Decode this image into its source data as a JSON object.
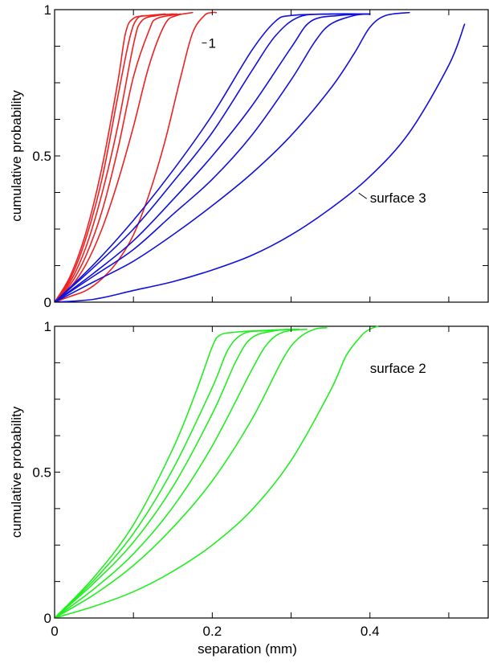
{
  "chart_data": [
    {
      "type": "line",
      "panel": "top",
      "ylabel": "cumulative probability",
      "xlabel": "",
      "xlim": [
        0,
        0.55
      ],
      "ylim": [
        0,
        1
      ],
      "x_ticks": [
        0,
        0.2,
        0.4
      ],
      "y_ticks": [
        {
          "value": 0,
          "label": "0"
        },
        {
          "value": 0.5,
          "label": "0.5"
        },
        {
          "value": 1,
          "label": "1"
        }
      ],
      "show_x_tick_labels": false,
      "annotations": [
        {
          "text": "1",
          "x": 0.195,
          "y": 0.87
        },
        {
          "text": "surface 3",
          "x": 0.4,
          "y": 0.34
        }
      ],
      "series_groups": [
        {
          "color": "#ee2222",
          "curves": [
            {
              "x": [
                0,
                0.02,
                0.04,
                0.06,
                0.08,
                0.09,
                0.1,
                0.12,
                0.14
              ],
              "y": [
                0,
                0.09,
                0.24,
                0.46,
                0.75,
                0.92,
                0.97,
                0.98,
                0.985
              ]
            },
            {
              "x": [
                0,
                0.02,
                0.04,
                0.06,
                0.08,
                0.095,
                0.105,
                0.12,
                0.15
              ],
              "y": [
                0,
                0.08,
                0.22,
                0.42,
                0.7,
                0.9,
                0.97,
                0.98,
                0.985
              ]
            },
            {
              "x": [
                0,
                0.02,
                0.04,
                0.06,
                0.08,
                0.1,
                0.11,
                0.13,
                0.155
              ],
              "y": [
                0,
                0.07,
                0.19,
                0.37,
                0.6,
                0.88,
                0.96,
                0.98,
                0.985
              ]
            },
            {
              "x": [
                0,
                0.02,
                0.04,
                0.06,
                0.08,
                0.1,
                0.12,
                0.13,
                0.16
              ],
              "y": [
                0,
                0.06,
                0.16,
                0.31,
                0.52,
                0.77,
                0.93,
                0.97,
                0.985
              ]
            },
            {
              "x": [
                0,
                0.02,
                0.04,
                0.06,
                0.08,
                0.1,
                0.12,
                0.14,
                0.155,
                0.175
              ],
              "y": [
                0,
                0.05,
                0.13,
                0.25,
                0.41,
                0.6,
                0.81,
                0.95,
                0.98,
                0.99
              ]
            },
            {
              "x": [
                0,
                0.02,
                0.04,
                0.06,
                0.08,
                0.1,
                0.12,
                0.14,
                0.16,
                0.175,
                0.19,
                0.2,
                0.205
              ],
              "y": [
                0,
                0.02,
                0.04,
                0.08,
                0.14,
                0.23,
                0.37,
                0.55,
                0.77,
                0.92,
                0.98,
                0.99,
                0.99
              ]
            }
          ]
        },
        {
          "color": "#1111dd",
          "curves": [
            {
              "x": [
                0,
                0.05,
                0.1,
                0.15,
                0.2,
                0.25,
                0.28,
                0.3,
                0.35,
                0.4
              ],
              "y": [
                0,
                0.13,
                0.28,
                0.45,
                0.64,
                0.86,
                0.96,
                0.98,
                0.985,
                0.985
              ]
            },
            {
              "x": [
                0,
                0.05,
                0.1,
                0.15,
                0.2,
                0.25,
                0.28,
                0.31,
                0.35,
                0.4
              ],
              "y": [
                0,
                0.12,
                0.25,
                0.41,
                0.58,
                0.79,
                0.91,
                0.975,
                0.985,
                0.985
              ]
            },
            {
              "x": [
                0,
                0.05,
                0.1,
                0.15,
                0.2,
                0.25,
                0.3,
                0.325,
                0.36,
                0.4
              ],
              "y": [
                0,
                0.1,
                0.21,
                0.35,
                0.5,
                0.67,
                0.87,
                0.96,
                0.98,
                0.985
              ]
            },
            {
              "x": [
                0,
                0.05,
                0.1,
                0.15,
                0.2,
                0.25,
                0.3,
                0.33,
                0.35,
                0.38,
                0.4
              ],
              "y": [
                0,
                0.09,
                0.18,
                0.3,
                0.42,
                0.57,
                0.76,
                0.89,
                0.95,
                0.98,
                0.985
              ]
            },
            {
              "x": [
                0,
                0.05,
                0.1,
                0.15,
                0.2,
                0.25,
                0.3,
                0.35,
                0.38,
                0.4,
                0.42,
                0.45
              ],
              "y": [
                0,
                0.07,
                0.14,
                0.23,
                0.33,
                0.44,
                0.57,
                0.73,
                0.85,
                0.94,
                0.98,
                0.99
              ]
            },
            {
              "x": [
                0,
                0.05,
                0.1,
                0.15,
                0.2,
                0.25,
                0.3,
                0.35,
                0.4,
                0.45,
                0.5,
                0.52
              ],
              "y": [
                0,
                0.01,
                0.04,
                0.07,
                0.11,
                0.16,
                0.23,
                0.32,
                0.43,
                0.58,
                0.81,
                0.95
              ]
            }
          ]
        }
      ]
    },
    {
      "type": "line",
      "panel": "bottom",
      "ylabel": "cumulative probability",
      "xlabel": "separation (mm)",
      "xlim": [
        0,
        0.55
      ],
      "ylim": [
        0,
        1
      ],
      "x_ticks": [
        {
          "value": 0,
          "label": "0"
        },
        {
          "value": 0.2,
          "label": "0.2"
        },
        {
          "value": 0.4,
          "label": "0.4"
        }
      ],
      "y_ticks": [
        {
          "value": 0,
          "label": "0"
        },
        {
          "value": 0.5,
          "label": "0.5"
        },
        {
          "value": 1,
          "label": "1"
        }
      ],
      "show_x_tick_labels": true,
      "annotations": [
        {
          "text": "surface 2",
          "x": 0.4,
          "y": 0.84
        }
      ],
      "series_groups": [
        {
          "color": "#22ee22",
          "curves": [
            {
              "x": [
                0,
                0.05,
                0.1,
                0.15,
                0.18,
                0.2,
                0.21,
                0.23,
                0.26,
                0.3
              ],
              "y": [
                0,
                0.14,
                0.32,
                0.58,
                0.78,
                0.93,
                0.97,
                0.98,
                0.985,
                0.99
              ]
            },
            {
              "x": [
                0,
                0.05,
                0.1,
                0.15,
                0.2,
                0.22,
                0.24,
                0.27,
                0.305
              ],
              "y": [
                0,
                0.13,
                0.29,
                0.51,
                0.79,
                0.92,
                0.975,
                0.985,
                0.99
              ]
            },
            {
              "x": [
                0,
                0.05,
                0.1,
                0.15,
                0.2,
                0.23,
                0.25,
                0.28,
                0.31
              ],
              "y": [
                0,
                0.12,
                0.26,
                0.45,
                0.7,
                0.88,
                0.96,
                0.985,
                0.99
              ]
            },
            {
              "x": [
                0,
                0.05,
                0.1,
                0.15,
                0.2,
                0.25,
                0.27,
                0.29,
                0.32
              ],
              "y": [
                0,
                0.1,
                0.22,
                0.38,
                0.59,
                0.85,
                0.94,
                0.98,
                0.99
              ]
            },
            {
              "x": [
                0,
                0.05,
                0.1,
                0.15,
                0.2,
                0.25,
                0.29,
                0.31,
                0.33,
                0.345
              ],
              "y": [
                0,
                0.08,
                0.18,
                0.31,
                0.47,
                0.68,
                0.89,
                0.96,
                0.99,
                0.995
              ]
            },
            {
              "x": [
                0,
                0.05,
                0.1,
                0.15,
                0.2,
                0.25,
                0.3,
                0.35,
                0.37,
                0.39,
                0.4,
                0.41
              ],
              "y": [
                0,
                0.04,
                0.09,
                0.16,
                0.25,
                0.37,
                0.54,
                0.78,
                0.9,
                0.97,
                0.99,
                1.0
              ]
            }
          ]
        }
      ]
    }
  ]
}
